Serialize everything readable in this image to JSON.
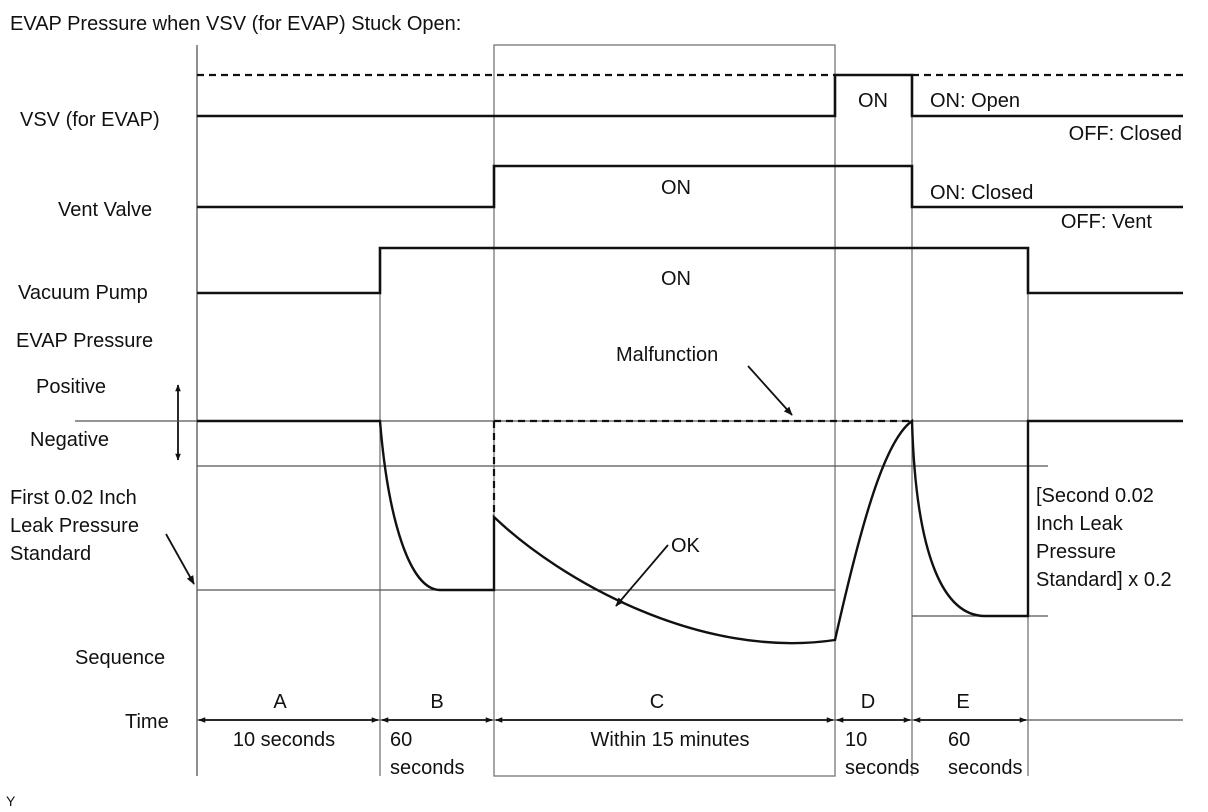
{
  "title": "EVAP Pressure when VSV (for EVAP) Stuck Open:",
  "row_labels": {
    "vsv": "VSV (for EVAP)",
    "vent_valve": "Vent Valve",
    "vacuum_pump": "Vacuum Pump",
    "evap_pressure": "EVAP Pressure",
    "positive": "Positive",
    "negative": "Negative",
    "first_standard": [
      "First 0.02 Inch",
      "Leak Pressure",
      "Standard"
    ],
    "sequence": "Sequence",
    "time": "Time"
  },
  "signal_labels": {
    "vsv_on": "ON",
    "vsv_state_on": "ON: Open",
    "vsv_state_off": "OFF: Closed",
    "vent_on": "ON",
    "vent_state_on": "ON: Closed",
    "vent_state_off": "OFF: Vent",
    "pump_on": "ON"
  },
  "annotations": {
    "malfunction": "Malfunction",
    "ok": "OK",
    "second_standard": [
      "[Second 0.02",
      "Inch Leak",
      "Pressure",
      "Standard] x 0.2"
    ]
  },
  "sequence": [
    {
      "letter": "A",
      "time": [
        "10 seconds"
      ]
    },
    {
      "letter": "B",
      "time": [
        "60",
        "seconds"
      ]
    },
    {
      "letter": "C",
      "time": [
        "Within 15 minutes"
      ]
    },
    {
      "letter": "D",
      "time": [
        "10",
        "seconds"
      ]
    },
    {
      "letter": "E",
      "time": [
        "60",
        "seconds"
      ]
    }
  ],
  "footer": "Y"
}
